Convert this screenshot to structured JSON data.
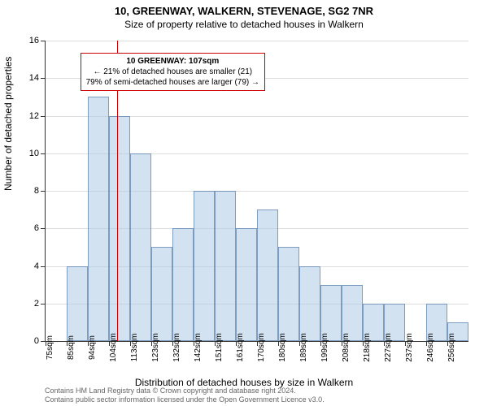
{
  "title_main": "10, GREENWAY, WALKERN, STEVENAGE, SG2 7NR",
  "title_sub": "Size of property relative to detached houses in Walkern",
  "y_axis_title": "Number of detached properties",
  "x_axis_title": "Distribution of detached houses by size in Walkern",
  "footer_line1": "Contains HM Land Registry data © Crown copyright and database right 2024.",
  "footer_line2": "Contains public sector information licensed under the Open Government Licence v3.0.",
  "chart": {
    "type": "histogram",
    "background_color": "#ffffff",
    "grid_color": "#dddddd",
    "axis_color": "#333333",
    "bar_fill": "rgba(173,203,230,0.55)",
    "bar_border": "rgba(70,110,160,0.6)",
    "ref_line_color": "#cc0000",
    "callout_border": "#cc0000",
    "callout_bg": "#ffffff",
    "ylim": [
      0,
      16
    ],
    "ytick_step": 2,
    "x_start": 75,
    "x_step": 9.5,
    "x_unit": "sqm",
    "bars": [
      0,
      4,
      13,
      12,
      10,
      5,
      6,
      8,
      8,
      6,
      7,
      5,
      4,
      3,
      3,
      2,
      2,
      0,
      2,
      1
    ],
    "x_tick_indices": [
      0,
      1,
      2,
      3,
      4,
      5,
      6,
      7,
      8,
      9,
      10,
      11,
      12,
      13,
      14,
      15,
      16,
      17,
      18,
      19
    ],
    "reference_value": 107,
    "callout": {
      "line1": "10 GREENWAY: 107sqm",
      "line2": "← 21% of detached houses are smaller (21)",
      "line3": "79% of semi-detached houses are larger (79) →"
    }
  }
}
